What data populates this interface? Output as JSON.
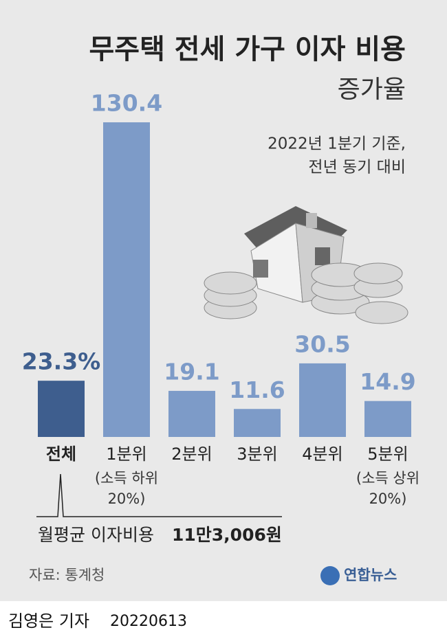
{
  "chart_data": {
    "type": "bar",
    "title": "무주택 전세 가구 이자 비용",
    "subtitle": "증가율",
    "note": [
      "2022년 1분기 기준,",
      "전년 동기 대비"
    ],
    "categories": [
      "전체",
      "1분위",
      "2분위",
      "3분위",
      "4분위",
      "5분위"
    ],
    "category_notes": [
      null,
      [
        "(소득 하위",
        "20%)"
      ],
      null,
      null,
      null,
      [
        "(소득 상위",
        "20%)"
      ]
    ],
    "values": [
      23.3,
      130.4,
      19.1,
      11.6,
      30.5,
      14.9
    ],
    "value_labels": [
      "23.3%",
      "130.4",
      "19.1",
      "11.6",
      "30.5",
      "14.9"
    ],
    "colors": [
      "#3e5e8e",
      "#7d9bc8",
      "#7d9bc8",
      "#7d9bc8",
      "#7d9bc8",
      "#7d9bc8"
    ],
    "annotation": {
      "label": "월평균 이자비용",
      "value": "11만3,006원"
    },
    "source": "자료: 통계청",
    "logo": "연합뉴스",
    "byline": "김영은 기자",
    "date": "20220613"
  }
}
